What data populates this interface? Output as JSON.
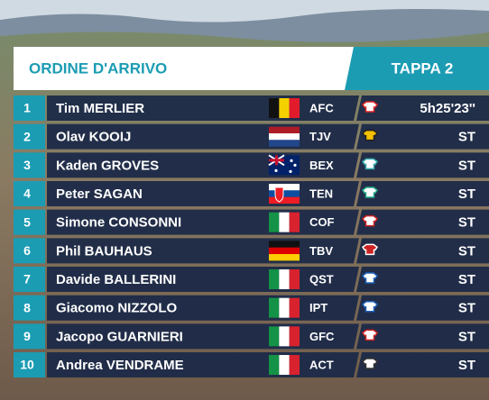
{
  "header": {
    "title": "ORDINE D'ARRIVO",
    "stage": "TAPPA 2"
  },
  "rows": [
    {
      "position": 1,
      "name": "Tim MERLIER",
      "team": "AFC",
      "time": "5h25'23''"
    },
    {
      "position": 2,
      "name": "Olav KOOIJ",
      "team": "TJV",
      "time": "ST"
    },
    {
      "position": 3,
      "name": "Kaden GROVES",
      "team": "BEX",
      "time": "ST"
    },
    {
      "position": 4,
      "name": "Peter SAGAN",
      "team": "TEN",
      "time": "ST"
    },
    {
      "position": 5,
      "name": "Simone CONSONNI",
      "team": "COF",
      "time": "ST"
    },
    {
      "position": 6,
      "name": "Phil BAUHAUS",
      "team": "TBV",
      "time": "ST"
    },
    {
      "position": 7,
      "name": "Davide BALLERINI",
      "team": "QST",
      "time": "ST"
    },
    {
      "position": 8,
      "name": "Giacomo NIZZOLO",
      "team": "IPT",
      "time": "ST"
    },
    {
      "position": 9,
      "name": "Jacopo GUARNIERI",
      "team": "GFC",
      "time": "ST"
    },
    {
      "position": 10,
      "name": "Andrea VENDRAME",
      "team": "ACT",
      "time": "ST"
    }
  ]
}
